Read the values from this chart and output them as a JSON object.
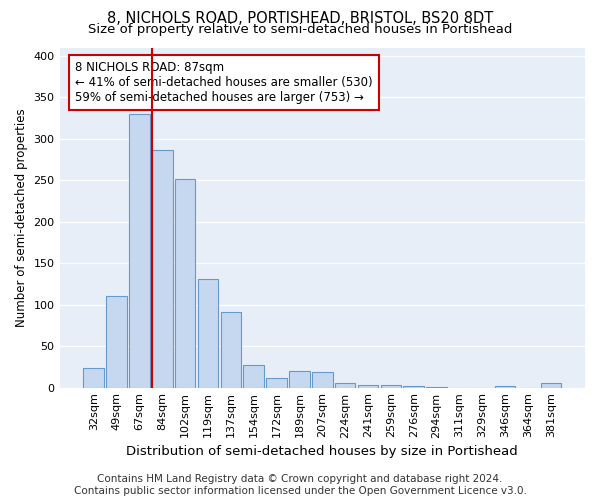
{
  "title1": "8, NICHOLS ROAD, PORTISHEAD, BRISTOL, BS20 8DT",
  "title2": "Size of property relative to semi-detached houses in Portishead",
  "xlabel": "Distribution of semi-detached houses by size in Portishead",
  "ylabel": "Number of semi-detached properties",
  "categories": [
    "32sqm",
    "49sqm",
    "67sqm",
    "84sqm",
    "102sqm",
    "119sqm",
    "137sqm",
    "154sqm",
    "172sqm",
    "189sqm",
    "207sqm",
    "224sqm",
    "241sqm",
    "259sqm",
    "276sqm",
    "294sqm",
    "311sqm",
    "329sqm",
    "346sqm",
    "364sqm",
    "381sqm"
  ],
  "values": [
    23,
    110,
    330,
    287,
    252,
    131,
    91,
    27,
    11,
    20,
    19,
    5,
    3,
    3,
    2,
    1,
    0,
    0,
    2,
    0,
    5
  ],
  "bar_color": "#c5d8f0",
  "bar_edge_color": "#6699cc",
  "highlight_line_index": 3,
  "highlight_line_color": "#cc0000",
  "annotation_text": "8 NICHOLS ROAD: 87sqm\n← 41% of semi-detached houses are smaller (530)\n59% of semi-detached houses are larger (753) →",
  "annotation_box_color": "#ffffff",
  "annotation_box_edge_color": "#cc0000",
  "footer1": "Contains HM Land Registry data © Crown copyright and database right 2024.",
  "footer2": "Contains public sector information licensed under the Open Government Licence v3.0.",
  "background_color": "#ffffff",
  "plot_bg_color": "#e8eef8",
  "ylim": [
    0,
    410
  ],
  "title1_fontsize": 10.5,
  "title2_fontsize": 9.5,
  "xlabel_fontsize": 9.5,
  "ylabel_fontsize": 8.5,
  "tick_fontsize": 8,
  "annotation_fontsize": 8.5,
  "footer_fontsize": 7.5
}
